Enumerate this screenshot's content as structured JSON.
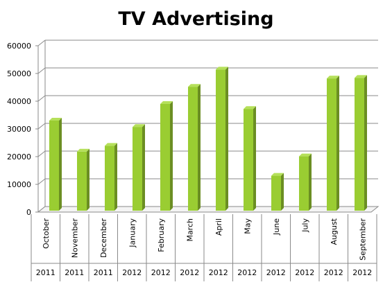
{
  "chart_data": {
    "type": "bar",
    "title": "TV Advertising",
    "xlabel": "",
    "ylabel": "",
    "ylim": [
      0,
      60000
    ],
    "y_ticks": [
      0,
      10000,
      20000,
      30000,
      40000,
      50000,
      60000
    ],
    "grid": true,
    "legend": "none",
    "categories": [
      "October",
      "November",
      "December",
      "January",
      "February",
      "March",
      "April",
      "May",
      "June",
      "July",
      "August",
      "September"
    ],
    "years": [
      "2011",
      "2011",
      "2011",
      "2012",
      "2012",
      "2012",
      "2012",
      "2012",
      "2012",
      "2012",
      "2012",
      "2012"
    ],
    "values": [
      33000,
      21800,
      23900,
      30700,
      39000,
      45200,
      51400,
      37200,
      13100,
      20100,
      48200,
      48400
    ],
    "colors": {
      "bar_front": "#9acd32",
      "bar_side": "#6b8e23",
      "bar_top": "#b5e05a",
      "grid": "#8a8a8a"
    }
  }
}
